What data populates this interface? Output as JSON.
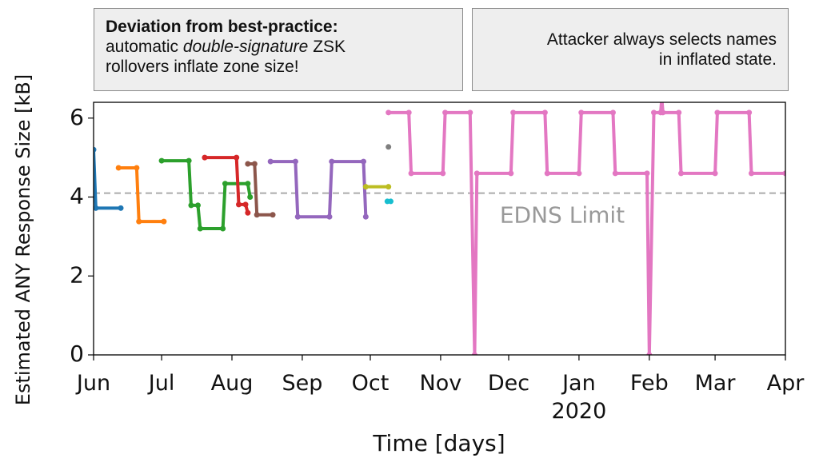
{
  "annotations": [
    {
      "heading": "Deviation from best-practice:",
      "line2": [
        "automatic",
        "double-signature",
        "ZSK"
      ],
      "line3": "rollovers inflate zone size!"
    },
    {
      "lines": [
        "Attacker always selects names",
        "in inflated state."
      ]
    }
  ],
  "chart_data": {
    "type": "line",
    "x_label": "Time [days]",
    "y_label": "Estimated ANY Response Size [kB]",
    "xlim": [
      0,
      305
    ],
    "xticks": [
      {
        "value": 0,
        "label": "Jun"
      },
      {
        "value": 30,
        "label": "Jul"
      },
      {
        "value": 61,
        "label": "Aug"
      },
      {
        "value": 92,
        "label": "Sep"
      },
      {
        "value": 122,
        "label": "Oct"
      },
      {
        "value": 153,
        "label": "Nov"
      },
      {
        "value": 183,
        "label": "Dec"
      },
      {
        "value": 214,
        "label": "Jan\n2020"
      },
      {
        "value": 245,
        "label": "Feb"
      },
      {
        "value": 274,
        "label": "Mar"
      },
      {
        "value": 305,
        "label": "Apr"
      }
    ],
    "ylim": [
      0,
      6.4
    ],
    "yticks": [
      0,
      2,
      4,
      6
    ],
    "reference_line": {
      "value": 4.1,
      "label": "EDNS Limit",
      "color": "#aaaaaa"
    },
    "series": [
      {
        "color": "#1f77b4",
        "x": [
          0,
          1,
          12
        ],
        "values": [
          5.2,
          3.72,
          3.72
        ]
      },
      {
        "color": "#ff7f0e",
        "x": [
          11,
          19,
          20,
          31
        ],
        "values": [
          4.74,
          4.74,
          3.38,
          3.38
        ]
      },
      {
        "color": "#2ca02c",
        "x": [
          30,
          42,
          43,
          46,
          47,
          57,
          58,
          68,
          69
        ],
        "values": [
          4.92,
          4.92,
          3.79,
          3.79,
          3.2,
          3.2,
          4.34,
          4.34,
          4.0
        ]
      },
      {
        "color": "#d62728",
        "x": [
          49,
          63,
          64,
          67,
          68
        ],
        "values": [
          5.0,
          5.0,
          3.81,
          3.81,
          3.6
        ]
      },
      {
        "color": "#8c564b",
        "x": [
          68,
          71,
          72,
          79
        ],
        "values": [
          4.84,
          4.84,
          3.55,
          3.55
        ]
      },
      {
        "color": "#9467bd",
        "x": [
          78,
          89,
          90,
          104,
          105,
          119,
          120
        ],
        "values": [
          4.9,
          4.9,
          3.5,
          3.5,
          4.9,
          4.9,
          3.5
        ]
      },
      {
        "color": "#7f7f7f",
        "x": [
          130
        ],
        "values": [
          5.27
        ]
      },
      {
        "color": "#bcbd22",
        "x": [
          120,
          130
        ],
        "values": [
          4.26,
          4.26
        ]
      },
      {
        "color": "#17becf",
        "x": [
          129.5,
          131
        ],
        "values": [
          3.89,
          3.89
        ]
      },
      {
        "color": "#e377c2",
        "x": [
          130,
          139,
          140,
          154,
          155,
          166,
          168,
          169,
          184,
          185,
          199,
          200,
          214,
          215,
          229,
          230,
          244,
          245,
          247,
          250,
          250.5,
          251,
          258,
          259,
          274,
          275,
          289,
          290,
          305
        ],
        "values": [
          6.14,
          6.14,
          4.6,
          4.6,
          6.14,
          6.14,
          0,
          4.6,
          4.6,
          6.14,
          6.14,
          4.6,
          4.6,
          6.14,
          6.14,
          4.6,
          4.6,
          0,
          6.14,
          6.14,
          6.5,
          6.14,
          6.14,
          4.6,
          4.6,
          6.14,
          6.14,
          4.6,
          4.6
        ]
      }
    ]
  }
}
